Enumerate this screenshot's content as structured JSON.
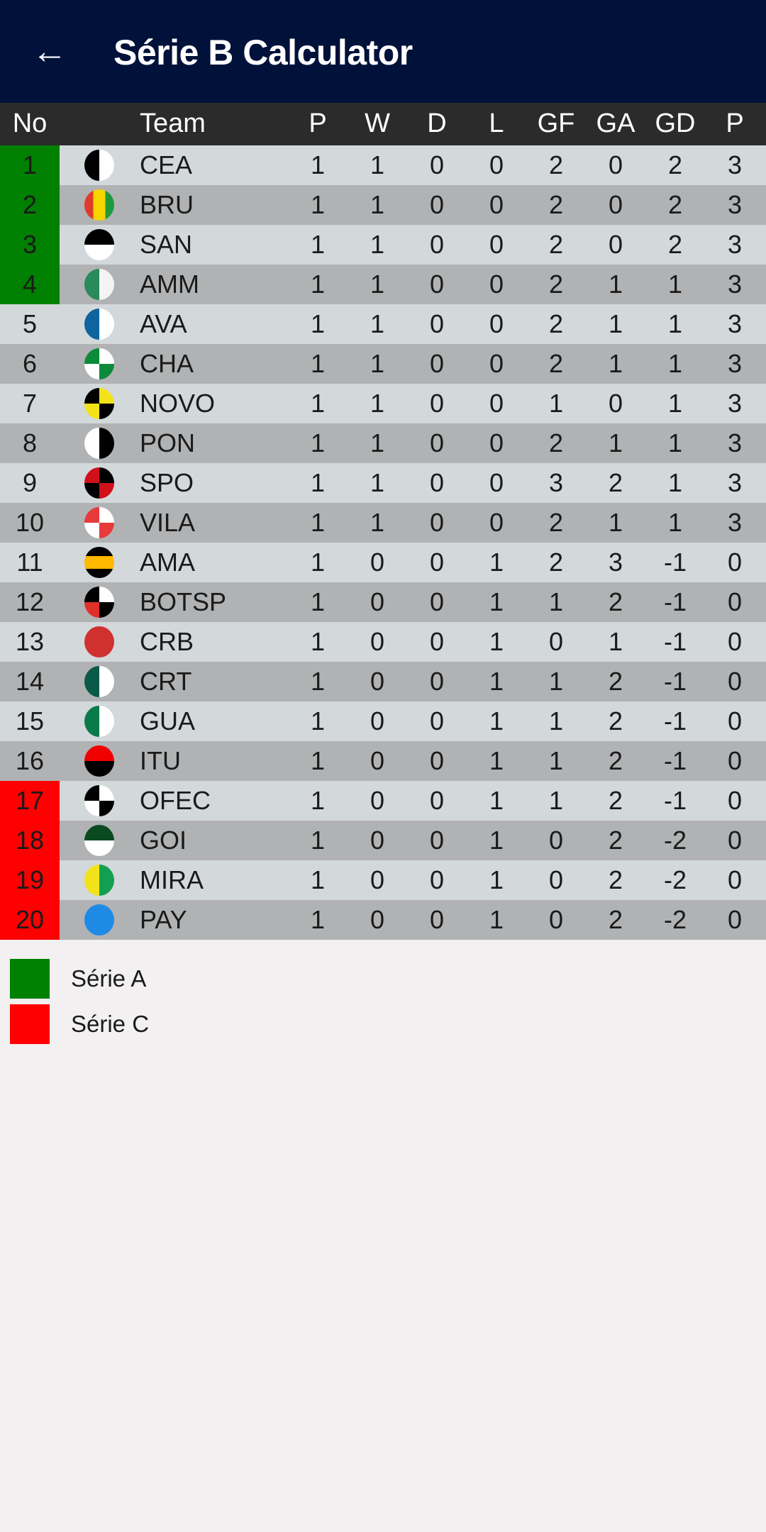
{
  "appbar": {
    "title": "Série B Calculator",
    "back_icon": "arrow-left-icon"
  },
  "table": {
    "headers": [
      "No",
      "Team",
      "P",
      "W",
      "D",
      "L",
      "GF",
      "GA",
      "GD",
      "P"
    ],
    "colors": {
      "promotion": "#008000",
      "relegation": "#ff0000",
      "row_light": "#d3d8db",
      "row_dark": "#b0b2b4"
    },
    "rows": [
      {
        "pos": "1",
        "zone": "promotion",
        "team": "CEA",
        "crest": {
          "type": "v",
          "c": [
            "#000000",
            "#ffffff"
          ]
        },
        "stats": [
          "1",
          "1",
          "0",
          "0",
          "2",
          "0",
          "2",
          "3"
        ]
      },
      {
        "pos": "2",
        "zone": "promotion",
        "team": "BRU",
        "crest": {
          "type": "v3",
          "c": [
            "#e03a2a",
            "#f5d400",
            "#1f9a3a"
          ]
        },
        "stats": [
          "1",
          "1",
          "0",
          "0",
          "2",
          "0",
          "2",
          "3"
        ]
      },
      {
        "pos": "3",
        "zone": "promotion",
        "team": "SAN",
        "crest": {
          "type": "h",
          "c": [
            "#000000",
            "#ffffff"
          ]
        },
        "stats": [
          "1",
          "1",
          "0",
          "0",
          "2",
          "0",
          "2",
          "3"
        ]
      },
      {
        "pos": "4",
        "zone": "promotion",
        "team": "AMM",
        "crest": {
          "type": "v",
          "c": [
            "#2a8a5a",
            "#f4f4f4"
          ]
        },
        "stats": [
          "1",
          "1",
          "0",
          "0",
          "2",
          "1",
          "1",
          "3"
        ]
      },
      {
        "pos": "5",
        "zone": "",
        "team": "AVA",
        "crest": {
          "type": "v",
          "c": [
            "#0f64a0",
            "#ffffff"
          ]
        },
        "stats": [
          "1",
          "1",
          "0",
          "0",
          "2",
          "1",
          "1",
          "3"
        ]
      },
      {
        "pos": "6",
        "zone": "",
        "team": "CHA",
        "crest": {
          "type": "q",
          "c": [
            "#0a8a3a",
            "#ffffff",
            "#ffffff",
            "#0a8a3a"
          ]
        },
        "stats": [
          "1",
          "1",
          "0",
          "0",
          "2",
          "1",
          "1",
          "3"
        ]
      },
      {
        "pos": "7",
        "zone": "",
        "team": "NOVO",
        "crest": {
          "type": "q",
          "c": [
            "#000000",
            "#f2e21a",
            "#f2e21a",
            "#000000"
          ]
        },
        "stats": [
          "1",
          "1",
          "0",
          "0",
          "1",
          "0",
          "1",
          "3"
        ]
      },
      {
        "pos": "8",
        "zone": "",
        "team": "PON",
        "crest": {
          "type": "v",
          "c": [
            "#ffffff",
            "#000000"
          ]
        },
        "stats": [
          "1",
          "1",
          "0",
          "0",
          "2",
          "1",
          "1",
          "3"
        ]
      },
      {
        "pos": "9",
        "zone": "",
        "team": "SPO",
        "crest": {
          "type": "q",
          "c": [
            "#d0101a",
            "#000000",
            "#000000",
            "#d0101a"
          ]
        },
        "stats": [
          "1",
          "1",
          "0",
          "0",
          "3",
          "2",
          "1",
          "3"
        ]
      },
      {
        "pos": "10",
        "zone": "",
        "team": "VILA",
        "crest": {
          "type": "q",
          "c": [
            "#e83a3a",
            "#ffffff",
            "#ffffff",
            "#e83a3a"
          ]
        },
        "stats": [
          "1",
          "1",
          "0",
          "0",
          "2",
          "1",
          "1",
          "3"
        ]
      },
      {
        "pos": "11",
        "zone": "",
        "team": "AMA",
        "crest": {
          "type": "h3",
          "c": [
            "#000000",
            "#ffb800",
            "#000000"
          ]
        },
        "stats": [
          "1",
          "0",
          "0",
          "1",
          "2",
          "3",
          "-1",
          "0"
        ]
      },
      {
        "pos": "12",
        "zone": "",
        "team": "BOTSP",
        "crest": {
          "type": "q",
          "c": [
            "#000000",
            "#ffffff",
            "#e0302a",
            "#000000"
          ]
        },
        "stats": [
          "1",
          "0",
          "0",
          "1",
          "1",
          "2",
          "-1",
          "0"
        ]
      },
      {
        "pos": "13",
        "zone": "",
        "team": "CRB",
        "crest": {
          "type": "s",
          "c": [
            "#d03030"
          ]
        },
        "stats": [
          "1",
          "0",
          "0",
          "1",
          "0",
          "1",
          "-1",
          "0"
        ]
      },
      {
        "pos": "14",
        "zone": "",
        "team": "CRT",
        "crest": {
          "type": "v",
          "c": [
            "#0a5a48",
            "#ffffff"
          ]
        },
        "stats": [
          "1",
          "0",
          "0",
          "1",
          "1",
          "2",
          "-1",
          "0"
        ]
      },
      {
        "pos": "15",
        "zone": "",
        "team": "GUA",
        "crest": {
          "type": "v",
          "c": [
            "#0a7a4a",
            "#ffffff"
          ]
        },
        "stats": [
          "1",
          "0",
          "0",
          "1",
          "1",
          "2",
          "-1",
          "0"
        ]
      },
      {
        "pos": "16",
        "zone": "",
        "team": "ITU",
        "crest": {
          "type": "h",
          "c": [
            "#f00000",
            "#000000"
          ]
        },
        "stats": [
          "1",
          "0",
          "0",
          "1",
          "1",
          "2",
          "-1",
          "0"
        ]
      },
      {
        "pos": "17",
        "zone": "relegation",
        "team": "OFEC",
        "crest": {
          "type": "q",
          "c": [
            "#000000",
            "#ffffff",
            "#ffffff",
            "#000000"
          ]
        },
        "stats": [
          "1",
          "0",
          "0",
          "1",
          "1",
          "2",
          "-1",
          "0"
        ]
      },
      {
        "pos": "18",
        "zone": "relegation",
        "team": "GOI",
        "crest": {
          "type": "h",
          "c": [
            "#0a4a20",
            "#ffffff"
          ]
        },
        "stats": [
          "1",
          "0",
          "0",
          "1",
          "0",
          "2",
          "-2",
          "0"
        ]
      },
      {
        "pos": "19",
        "zone": "relegation",
        "team": "MIRA",
        "crest": {
          "type": "v",
          "c": [
            "#f2e21a",
            "#12a050"
          ]
        },
        "stats": [
          "1",
          "0",
          "0",
          "1",
          "0",
          "2",
          "-2",
          "0"
        ]
      },
      {
        "pos": "20",
        "zone": "relegation",
        "team": "PAY",
        "crest": {
          "type": "s",
          "c": [
            "#1e8ae6"
          ]
        },
        "stats": [
          "1",
          "0",
          "0",
          "1",
          "0",
          "2",
          "-2",
          "0"
        ]
      }
    ]
  },
  "legend": [
    {
      "label": "Série A",
      "color": "#008000"
    },
    {
      "label": "Série C",
      "color": "#ff0000"
    }
  ]
}
